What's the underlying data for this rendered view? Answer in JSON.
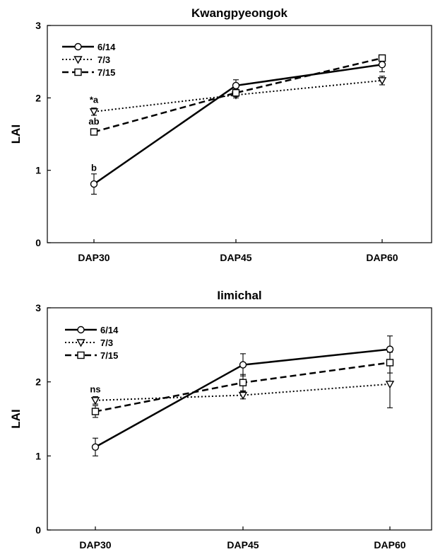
{
  "chart_data": [
    {
      "type": "line",
      "title": "Kwangpyeongok",
      "xlabel": "",
      "ylabel": "LAI",
      "categories": [
        "DAP30",
        "DAP45",
        "DAP60"
      ],
      "ylim": [
        0,
        3
      ],
      "yticks": [
        "0",
        "1",
        "2",
        "3"
      ],
      "legend_position": "top-left",
      "series": [
        {
          "name": "6/14",
          "values": [
            0.81,
            2.17,
            2.46
          ],
          "errors": [
            0.14,
            0.08,
            0.1
          ],
          "marker": "circle",
          "line": "solid"
        },
        {
          "name": "7/3",
          "values": [
            1.81,
            2.04,
            2.24
          ],
          "errors": [
            0.05,
            0.04,
            0.06
          ],
          "marker": "triangle-down",
          "line": "dotted"
        },
        {
          "name": "7/15",
          "values": [
            1.53,
            2.07,
            2.55
          ],
          "errors": [
            0.03,
            0.05,
            0.04
          ],
          "marker": "square",
          "line": "dashed"
        }
      ],
      "annotations": [
        {
          "text": "*a",
          "category": "DAP30",
          "y": 1.93
        },
        {
          "text": "ab",
          "category": "DAP30",
          "y": 1.63
        },
        {
          "text": "b",
          "category": "DAP30",
          "y": 0.99
        }
      ]
    },
    {
      "type": "line",
      "title": "Iimichal",
      "xlabel": "",
      "ylabel": "LAI",
      "categories": [
        "DAP30",
        "DAP45",
        "DAP60"
      ],
      "ylim": [
        0,
        3
      ],
      "yticks": [
        "0",
        "1",
        "2",
        "3"
      ],
      "legend_position": "top-left",
      "series": [
        {
          "name": "6/14",
          "values": [
            1.12,
            2.23,
            2.44
          ],
          "errors": [
            0.12,
            0.15,
            0.18
          ],
          "marker": "circle",
          "line": "solid"
        },
        {
          "name": "7/3",
          "values": [
            1.75,
            1.82,
            1.97
          ],
          "errors": [
            0.05,
            0.05,
            0.32
          ],
          "marker": "triangle-down",
          "line": "dotted"
        },
        {
          "name": "7/15",
          "values": [
            1.6,
            1.99,
            2.26
          ],
          "errors": [
            0.08,
            0.11,
            0.14
          ],
          "marker": "square",
          "line": "dashed"
        }
      ],
      "annotations": [
        {
          "text": "ns",
          "category": "DAP30",
          "y": 1.86
        }
      ]
    }
  ]
}
